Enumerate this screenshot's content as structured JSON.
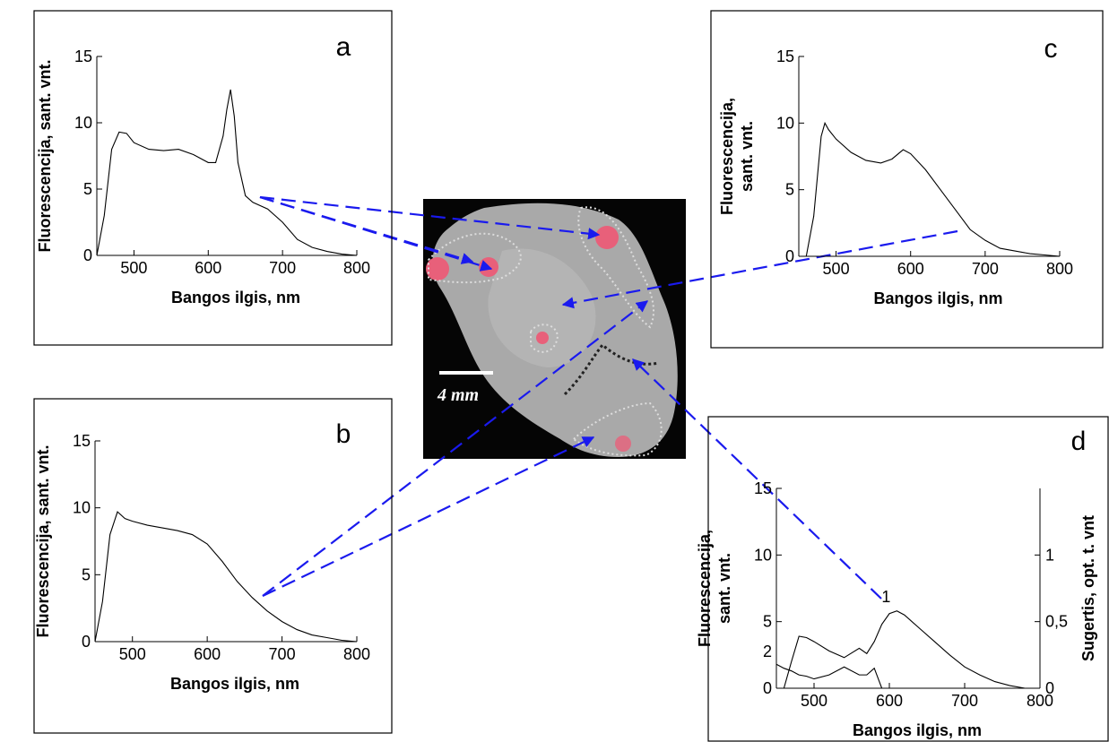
{
  "image": {
    "scale_label": "4 mm"
  },
  "chart_data": [
    {
      "type": "line",
      "title": "a",
      "xlabel": "Bangos ilgis, nm",
      "ylabel": [
        "Fluorescencija, sant. vnt."
      ],
      "x": [
        450,
        460,
        470,
        480,
        490,
        500,
        520,
        540,
        560,
        580,
        600,
        610,
        620,
        625,
        630,
        635,
        640,
        650,
        660,
        680,
        700,
        720,
        740,
        760,
        780,
        800
      ],
      "series": [
        {
          "name": null,
          "color": "#000000",
          "values": [
            0,
            3,
            8,
            9.3,
            9.2,
            8.5,
            8,
            7.9,
            8,
            7.6,
            7,
            7,
            9,
            11,
            12.5,
            10.5,
            7,
            4.5,
            4,
            3.5,
            2.5,
            1.2,
            0.6,
            0.3,
            0.1,
            0
          ]
        }
      ],
      "xlim": [
        450,
        800
      ],
      "xticks": [
        500,
        600,
        700,
        800
      ],
      "ylim": [
        0,
        15
      ],
      "yticks": [
        0,
        5,
        10,
        15
      ]
    },
    {
      "type": "line",
      "title": "b",
      "xlabel": "Bangos ilgis, nm",
      "ylabel": [
        "Fluorescencija, sant. vnt."
      ],
      "x": [
        450,
        460,
        470,
        480,
        490,
        500,
        520,
        540,
        560,
        580,
        600,
        620,
        640,
        660,
        680,
        700,
        720,
        740,
        760,
        780,
        800
      ],
      "series": [
        {
          "name": null,
          "color": "#000000",
          "values": [
            0,
            3,
            8,
            9.7,
            9.2,
            9,
            8.7,
            8.5,
            8.3,
            8,
            7.3,
            6,
            4.5,
            3.3,
            2.3,
            1.5,
            0.9,
            0.5,
            0.3,
            0.1,
            0
          ]
        }
      ],
      "xlim": [
        450,
        800
      ],
      "xticks": [
        500,
        600,
        700,
        800
      ],
      "ylim": [
        0,
        15
      ],
      "yticks": [
        0,
        5,
        10,
        15
      ]
    },
    {
      "type": "line",
      "title": "c",
      "xlabel": "Bangos ilgis, nm",
      "ylabel": [
        "Fluorescencija,",
        "sant. vnt."
      ],
      "x": [
        460,
        470,
        480,
        485,
        490,
        500,
        520,
        540,
        560,
        575,
        590,
        600,
        620,
        640,
        660,
        680,
        700,
        720,
        740,
        760,
        780,
        800
      ],
      "series": [
        {
          "name": null,
          "color": "#000000",
          "values": [
            0,
            3,
            9,
            10,
            9.5,
            8.8,
            7.8,
            7.2,
            7,
            7.3,
            8,
            7.7,
            6.5,
            5,
            3.5,
            2,
            1.2,
            0.6,
            0.4,
            0.2,
            0.1,
            0
          ]
        }
      ],
      "xlim": [
        450,
        800
      ],
      "xticks": [
        500,
        600,
        700,
        800
      ],
      "ylim": [
        0,
        15
      ],
      "yticks": [
        0,
        5,
        10,
        15
      ]
    },
    {
      "type": "line",
      "title": "d",
      "xlabel": "Bangos ilgis, nm",
      "ylabel": [
        "Fluorescencija,",
        "sant. vnt."
      ],
      "y2label": "Sugertis, opt. t. vnt",
      "x": [
        450,
        460,
        470,
        480,
        490,
        500,
        520,
        540,
        560,
        570,
        580,
        590,
        600,
        610,
        620,
        640,
        660,
        680,
        700,
        720,
        740,
        760,
        780,
        800
      ],
      "series": [
        {
          "name": "1",
          "color": "#000000",
          "values": [
            null,
            0,
            2,
            3.9,
            3.8,
            3.5,
            2.8,
            2.3,
            3,
            2.6,
            3.5,
            4.8,
            5.6,
            5.8,
            5.5,
            4.5,
            3.5,
            2.5,
            1.6,
            1,
            0.5,
            0.2,
            0,
            0
          ]
        },
        {
          "name": "2",
          "color": "#000000",
          "axis": "y2",
          "values": [
            0.18,
            0.15,
            0.13,
            0.1,
            0.09,
            0.07,
            0.1,
            0.16,
            0.1,
            0.1,
            0.15,
            0,
            null,
            null,
            null,
            null,
            null,
            null,
            null,
            null,
            null,
            null,
            null,
            null
          ]
        }
      ],
      "xlim": [
        450,
        800
      ],
      "xticks": [
        500,
        600,
        700,
        800
      ],
      "ylim": [
        0,
        15
      ],
      "yticks": [
        0,
        5,
        10,
        15
      ],
      "y2lim": [
        0,
        1.5
      ],
      "y2ticks": [
        0,
        {
          "value": 0.5,
          "label": "0,5"
        },
        1
      ]
    }
  ]
}
